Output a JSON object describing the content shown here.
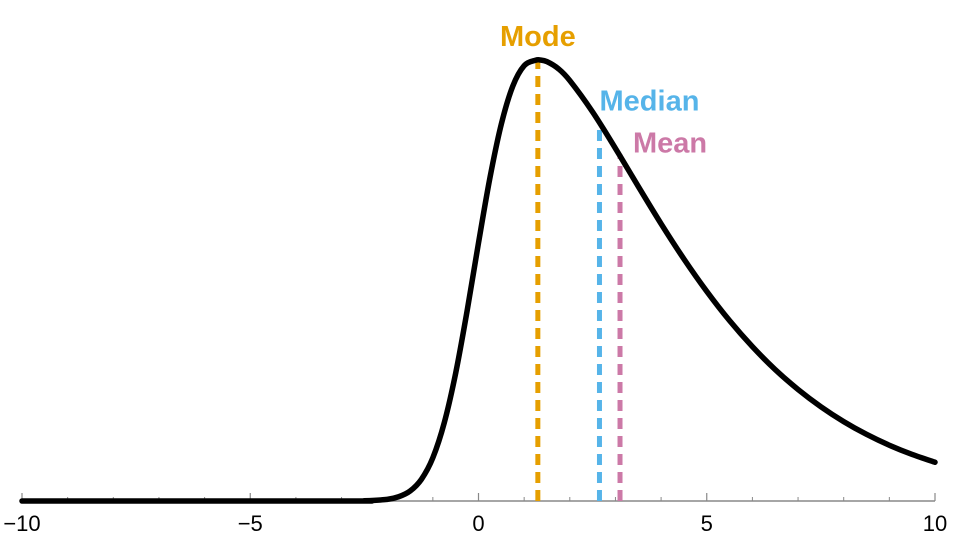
{
  "chart_data": {
    "type": "line",
    "title": "",
    "xlabel": "",
    "ylabel": "",
    "xlim": [
      -10,
      10
    ],
    "ylim": [
      0,
      0.26
    ],
    "x_major_ticks": [
      -10,
      -5,
      0,
      5,
      10
    ],
    "x_tick_labels": [
      "−10",
      "−5",
      "0",
      "5",
      "10"
    ],
    "x_minor_tick_step": 1,
    "grid": false,
    "curve_color": "#000000",
    "series": [
      {
        "x": [
          -10,
          -3,
          -2.5,
          -2,
          -1.75,
          -1.5,
          -1.25,
          -1,
          -0.75,
          -0.5,
          -0.25,
          0,
          0.25,
          0.5,
          0.75,
          1,
          1.25,
          1.35,
          1.5,
          1.75,
          2,
          2.5,
          3,
          3.5,
          4,
          4.5,
          5,
          5.5,
          6,
          6.5,
          7,
          7.5,
          8,
          8.5,
          9,
          9.5,
          10
        ],
        "y": [
          0,
          0,
          0.0001,
          0.0007,
          0.0018,
          0.0042,
          0.0092,
          0.0183,
          0.0331,
          0.0541,
          0.0804,
          0.1092,
          0.1367,
          0.1595,
          0.1755,
          0.1842,
          0.1865,
          0.1866,
          0.1859,
          0.1829,
          0.1779,
          0.1646,
          0.1492,
          0.1331,
          0.1173,
          0.1024,
          0.0887,
          0.0763,
          0.0653,
          0.0556,
          0.0472,
          0.0399,
          0.0336,
          0.0282,
          0.0236,
          0.0197,
          0.0164
        ]
      }
    ],
    "markers": [
      {
        "name": "Mode",
        "x": 1.3,
        "y": 0.1866,
        "color": "#E69F00"
      },
      {
        "name": "Median",
        "x": 2.65,
        "y": 0.1585,
        "color": "#56B4E9"
      },
      {
        "name": "Mean",
        "x": 3.1,
        "y": 0.1467,
        "color": "#CC79A7"
      }
    ]
  }
}
